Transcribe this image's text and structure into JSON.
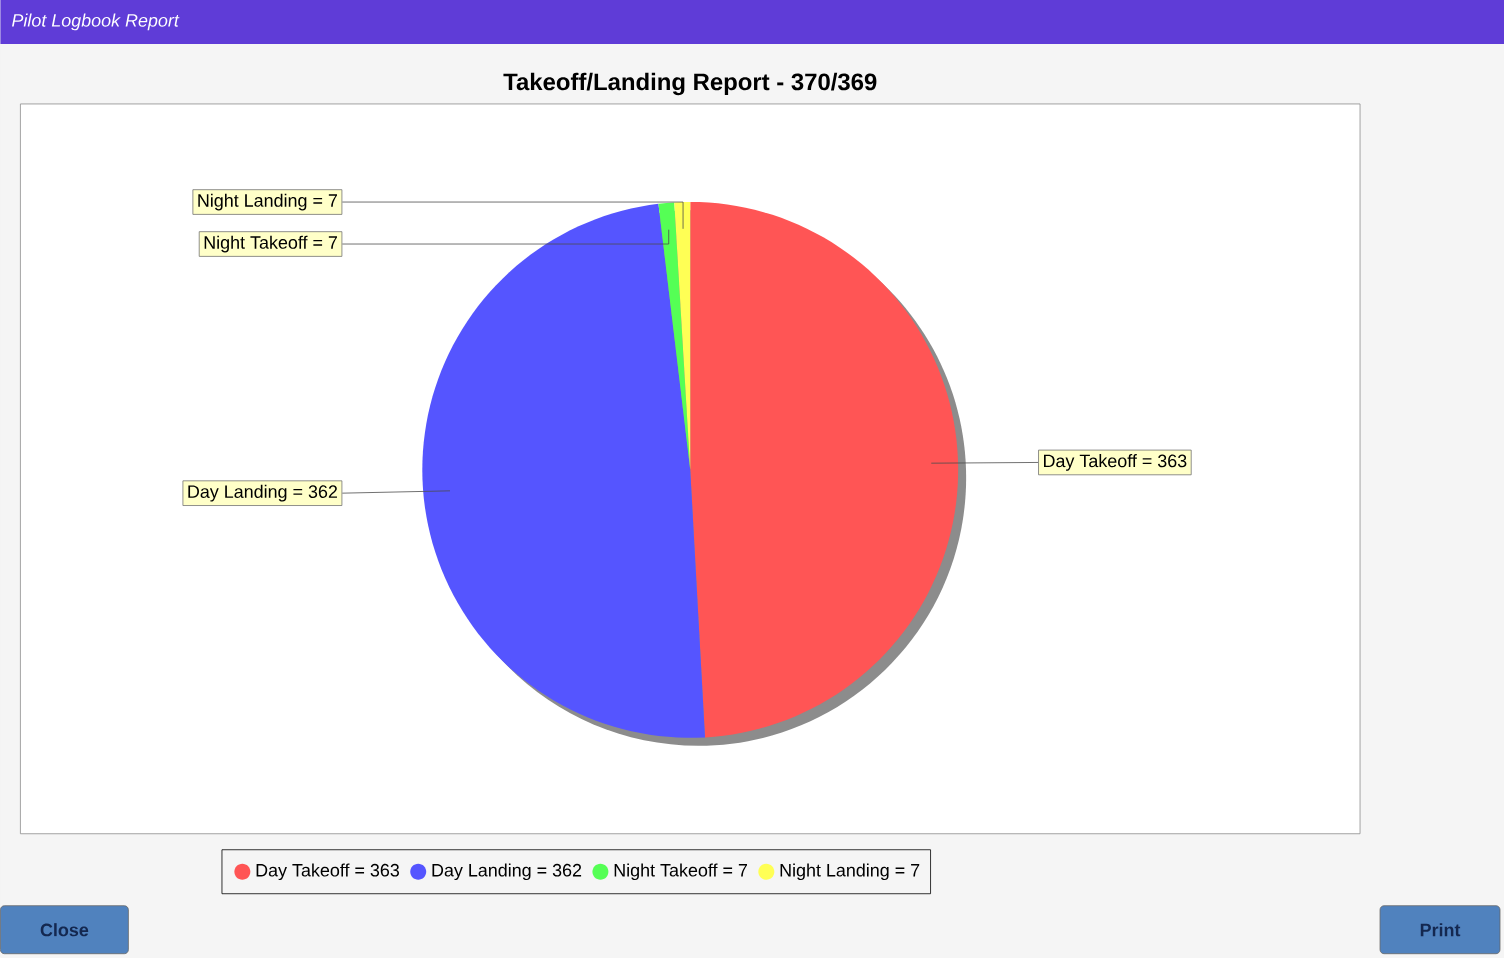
{
  "chart_data": {
    "type": "pie",
    "title": "Takeoff/Landing Report - 370/369",
    "categories": [
      "Day Takeoff",
      "Day Landing",
      "Night Takeoff",
      "Night Landing"
    ],
    "values": [
      363,
      362,
      7,
      7
    ],
    "colors": [
      "#ff5555",
      "#5555ff",
      "#55ff55",
      "#ffff55"
    ],
    "value_labels": [
      "= 363",
      "= 362",
      "= 7",
      "= 7"
    ],
    "data_labels": true,
    "legend": "bottom",
    "annotations": [
      "Pilot Logbook Report",
      "Close",
      "Print"
    ]
  }
}
